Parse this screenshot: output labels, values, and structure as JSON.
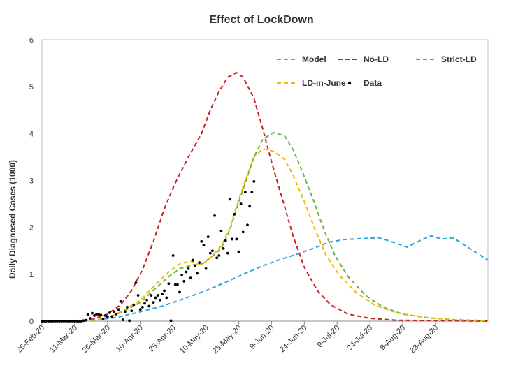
{
  "chart_data": {
    "type": "line",
    "title": "Effect of LockDown",
    "ylabel": "Daily Diagnosed Cases (1000)",
    "xlabel": "",
    "x_date_range": [
      "2020-02-25",
      "2020-09-16"
    ],
    "ylim": [
      0,
      6
    ],
    "yticks": [
      0,
      1,
      2,
      3,
      4,
      5,
      6
    ],
    "xticks": [
      {
        "date": "2020-02-25",
        "label": "25-Feb-20"
      },
      {
        "date": "2020-03-11",
        "label": "11-Mar-20"
      },
      {
        "date": "2020-03-26",
        "label": "26-Mar-20"
      },
      {
        "date": "2020-04-10",
        "label": "10-Apr-20"
      },
      {
        "date": "2020-04-25",
        "label": "25-Apr-20"
      },
      {
        "date": "2020-05-10",
        "label": "10-May-20"
      },
      {
        "date": "2020-05-25",
        "label": "25-May-20"
      },
      {
        "date": "2020-06-09",
        "label": "9-Jun-20"
      },
      {
        "date": "2020-06-24",
        "label": "24-Jun-20"
      },
      {
        "date": "2020-07-09",
        "label": "9-Jul-20"
      },
      {
        "date": "2020-07-24",
        "label": "24-Jul-20"
      },
      {
        "date": "2020-08-08",
        "label": "8-Aug-20"
      },
      {
        "date": "2020-08-23",
        "label": "23-Aug-20"
      }
    ],
    "grid": false,
    "legend_position": "top-right",
    "series": [
      {
        "name": "Model",
        "color": "#6db33f",
        "style": "dashed",
        "points": [
          [
            "2020-02-25",
            0
          ],
          [
            "2020-03-20",
            0.02
          ],
          [
            "2020-03-28",
            0.1
          ],
          [
            "2020-04-04",
            0.25
          ],
          [
            "2020-04-10",
            0.4
          ],
          [
            "2020-04-17",
            0.7
          ],
          [
            "2020-04-23",
            0.95
          ],
          [
            "2020-04-28",
            1.12
          ],
          [
            "2020-05-04",
            1.2
          ],
          [
            "2020-05-08",
            1.22
          ],
          [
            "2020-05-12",
            1.35
          ],
          [
            "2020-05-17",
            1.55
          ],
          [
            "2020-05-21",
            1.95
          ],
          [
            "2020-05-24",
            2.4
          ],
          [
            "2020-05-28",
            2.95
          ],
          [
            "2020-06-01",
            3.5
          ],
          [
            "2020-06-05",
            3.88
          ],
          [
            "2020-06-10",
            4.02
          ],
          [
            "2020-06-15",
            3.95
          ],
          [
            "2020-06-19",
            3.65
          ],
          [
            "2020-06-23",
            3.2
          ],
          [
            "2020-06-28",
            2.6
          ],
          [
            "2020-07-03",
            1.95
          ],
          [
            "2020-07-08",
            1.4
          ],
          [
            "2020-07-14",
            0.95
          ],
          [
            "2020-07-22",
            0.55
          ],
          [
            "2020-07-30",
            0.3
          ],
          [
            "2020-08-08",
            0.15
          ],
          [
            "2020-08-20",
            0.07
          ],
          [
            "2020-09-01",
            0.03
          ],
          [
            "2020-09-16",
            0.01
          ]
        ]
      },
      {
        "name": "No-LD",
        "color": "#c8201f",
        "style": "dashed",
        "points": [
          [
            "2020-02-25",
            0
          ],
          [
            "2020-03-18",
            0.02
          ],
          [
            "2020-03-26",
            0.15
          ],
          [
            "2020-04-01",
            0.35
          ],
          [
            "2020-04-06",
            0.65
          ],
          [
            "2020-04-11",
            1.1
          ],
          [
            "2020-04-16",
            1.7
          ],
          [
            "2020-04-21",
            2.4
          ],
          [
            "2020-04-26",
            2.95
          ],
          [
            "2020-05-02",
            3.5
          ],
          [
            "2020-05-08",
            4.0
          ],
          [
            "2020-05-12",
            4.5
          ],
          [
            "2020-05-16",
            4.9
          ],
          [
            "2020-05-20",
            5.2
          ],
          [
            "2020-05-24",
            5.3
          ],
          [
            "2020-05-27",
            5.2
          ],
          [
            "2020-06-01",
            4.75
          ],
          [
            "2020-06-05",
            4.1
          ],
          [
            "2020-06-09",
            3.4
          ],
          [
            "2020-06-14",
            2.6
          ],
          [
            "2020-06-19",
            1.8
          ],
          [
            "2020-06-24",
            1.15
          ],
          [
            "2020-06-30",
            0.65
          ],
          [
            "2020-07-06",
            0.35
          ],
          [
            "2020-07-14",
            0.15
          ],
          [
            "2020-07-24",
            0.06
          ],
          [
            "2020-08-05",
            0.02
          ],
          [
            "2020-09-16",
            0
          ]
        ]
      },
      {
        "name": "Strict-LD",
        "color": "#29a3db",
        "style": "dashed",
        "points": [
          [
            "2020-02-25",
            0
          ],
          [
            "2020-03-20",
            0.02
          ],
          [
            "2020-03-30",
            0.08
          ],
          [
            "2020-04-10",
            0.2
          ],
          [
            "2020-04-20",
            0.32
          ],
          [
            "2020-04-30",
            0.48
          ],
          [
            "2020-05-10",
            0.65
          ],
          [
            "2020-05-20",
            0.85
          ],
          [
            "2020-05-28",
            1.02
          ],
          [
            "2020-06-05",
            1.18
          ],
          [
            "2020-06-12",
            1.3
          ],
          [
            "2020-06-20",
            1.42
          ],
          [
            "2020-06-28",
            1.55
          ],
          [
            "2020-07-05",
            1.68
          ],
          [
            "2020-07-12",
            1.74
          ],
          [
            "2020-07-20",
            1.76
          ],
          [
            "2020-07-28",
            1.78
          ],
          [
            "2020-08-04",
            1.68
          ],
          [
            "2020-08-10",
            1.58
          ],
          [
            "2020-08-16",
            1.72
          ],
          [
            "2020-08-21",
            1.82
          ],
          [
            "2020-08-26",
            1.75
          ],
          [
            "2020-08-31",
            1.78
          ],
          [
            "2020-09-06",
            1.6
          ],
          [
            "2020-09-16",
            1.3
          ]
        ]
      },
      {
        "name": "LD-in-June",
        "color": "#f5b800",
        "style": "dashed",
        "points": [
          [
            "2020-02-25",
            0
          ],
          [
            "2020-03-20",
            0.02
          ],
          [
            "2020-03-28",
            0.1
          ],
          [
            "2020-04-04",
            0.28
          ],
          [
            "2020-04-10",
            0.45
          ],
          [
            "2020-04-17",
            0.78
          ],
          [
            "2020-04-23",
            1.05
          ],
          [
            "2020-04-28",
            1.22
          ],
          [
            "2020-05-03",
            1.28
          ],
          [
            "2020-05-08",
            1.2
          ],
          [
            "2020-05-12",
            1.35
          ],
          [
            "2020-05-17",
            1.6
          ],
          [
            "2020-05-21",
            2.0
          ],
          [
            "2020-05-24",
            2.45
          ],
          [
            "2020-05-28",
            3.0
          ],
          [
            "2020-06-01",
            3.5
          ],
          [
            "2020-06-05",
            3.68
          ],
          [
            "2020-06-10",
            3.62
          ],
          [
            "2020-06-15",
            3.45
          ],
          [
            "2020-06-19",
            3.1
          ],
          [
            "2020-06-24",
            2.55
          ],
          [
            "2020-06-29",
            1.95
          ],
          [
            "2020-07-04",
            1.4
          ],
          [
            "2020-07-10",
            0.98
          ],
          [
            "2020-07-18",
            0.6
          ],
          [
            "2020-07-26",
            0.35
          ],
          [
            "2020-08-05",
            0.18
          ],
          [
            "2020-08-18",
            0.08
          ],
          [
            "2020-09-01",
            0.03
          ],
          [
            "2020-09-16",
            0.01
          ]
        ]
      },
      {
        "name": "Data",
        "color": "#000000",
        "style": "markers",
        "points": [
          [
            "2020-02-25",
            0
          ],
          [
            "2020-02-26",
            0
          ],
          [
            "2020-02-27",
            0
          ],
          [
            "2020-02-28",
            0
          ],
          [
            "2020-02-29",
            0
          ],
          [
            "2020-03-01",
            0
          ],
          [
            "2020-03-02",
            0
          ],
          [
            "2020-03-03",
            0
          ],
          [
            "2020-03-04",
            0
          ],
          [
            "2020-03-05",
            0
          ],
          [
            "2020-03-06",
            0
          ],
          [
            "2020-03-07",
            0
          ],
          [
            "2020-03-08",
            0
          ],
          [
            "2020-03-09",
            0
          ],
          [
            "2020-03-10",
            0
          ],
          [
            "2020-03-11",
            0
          ],
          [
            "2020-03-12",
            0
          ],
          [
            "2020-03-13",
            0
          ],
          [
            "2020-03-14",
            0
          ],
          [
            "2020-03-15",
            0.01
          ],
          [
            "2020-03-16",
            0.02
          ],
          [
            "2020-03-17",
            0.14
          ],
          [
            "2020-03-18",
            0.06
          ],
          [
            "2020-03-19",
            0.17
          ],
          [
            "2020-03-20",
            0.12
          ],
          [
            "2020-03-21",
            0.15
          ],
          [
            "2020-03-22",
            0.14
          ],
          [
            "2020-03-23",
            0.13
          ],
          [
            "2020-03-24",
            0.05
          ],
          [
            "2020-03-25",
            0.12
          ],
          [
            "2020-03-26",
            0.1
          ],
          [
            "2020-03-27",
            0.18
          ],
          [
            "2020-03-28",
            0.1
          ],
          [
            "2020-03-29",
            0.2
          ],
          [
            "2020-03-30",
            0.15
          ],
          [
            "2020-03-31",
            0.25
          ],
          [
            "2020-04-01",
            0.42
          ],
          [
            "2020-04-02",
            0.03
          ],
          [
            "2020-04-03",
            0.2
          ],
          [
            "2020-04-04",
            0.3
          ],
          [
            "2020-04-05",
            0.01
          ],
          [
            "2020-04-06",
            0.22
          ],
          [
            "2020-04-07",
            0.35
          ],
          [
            "2020-04-08",
            0.82
          ],
          [
            "2020-04-09",
            0.55
          ],
          [
            "2020-04-10",
            0.25
          ],
          [
            "2020-04-11",
            0.3
          ],
          [
            "2020-04-12",
            0.38
          ],
          [
            "2020-04-13",
            0.45
          ],
          [
            "2020-04-14",
            0.32
          ],
          [
            "2020-04-15",
            0.55
          ],
          [
            "2020-04-16",
            0.4
          ],
          [
            "2020-04-17",
            0.5
          ],
          [
            "2020-04-18",
            0.55
          ],
          [
            "2020-04-19",
            0.45
          ],
          [
            "2020-04-20",
            0.58
          ],
          [
            "2020-04-21",
            0.65
          ],
          [
            "2020-04-22",
            0.5
          ],
          [
            "2020-04-23",
            0.8
          ],
          [
            "2020-04-24",
            0.01
          ],
          [
            "2020-04-25",
            1.4
          ],
          [
            "2020-04-26",
            0.78
          ],
          [
            "2020-04-27",
            0.78
          ],
          [
            "2020-04-28",
            0.62
          ],
          [
            "2020-04-29",
            0.98
          ],
          [
            "2020-04-30",
            0.85
          ],
          [
            "2020-05-01",
            1.05
          ],
          [
            "2020-05-02",
            1.12
          ],
          [
            "2020-05-03",
            0.92
          ],
          [
            "2020-05-04",
            1.3
          ],
          [
            "2020-05-05",
            1.18
          ],
          [
            "2020-05-06",
            1.02
          ],
          [
            "2020-05-07",
            1.25
          ],
          [
            "2020-05-08",
            1.7
          ],
          [
            "2020-05-09",
            1.62
          ],
          [
            "2020-05-10",
            1.12
          ],
          [
            "2020-05-11",
            1.8
          ],
          [
            "2020-05-12",
            1.45
          ],
          [
            "2020-05-13",
            1.5
          ],
          [
            "2020-05-14",
            2.25
          ],
          [
            "2020-05-15",
            1.35
          ],
          [
            "2020-05-16",
            1.4
          ],
          [
            "2020-05-17",
            1.92
          ],
          [
            "2020-05-18",
            1.55
          ],
          [
            "2020-05-19",
            1.72
          ],
          [
            "2020-05-20",
            1.45
          ],
          [
            "2020-05-21",
            2.6
          ],
          [
            "2020-05-22",
            1.75
          ],
          [
            "2020-05-23",
            2.28
          ],
          [
            "2020-05-24",
            1.75
          ],
          [
            "2020-05-25",
            1.48
          ],
          [
            "2020-05-26",
            2.5
          ],
          [
            "2020-05-27",
            1.9
          ],
          [
            "2020-05-28",
            2.75
          ],
          [
            "2020-05-29",
            2.05
          ],
          [
            "2020-05-30",
            2.45
          ],
          [
            "2020-05-31",
            2.75
          ],
          [
            "2020-06-01",
            2.98
          ]
        ]
      }
    ]
  }
}
